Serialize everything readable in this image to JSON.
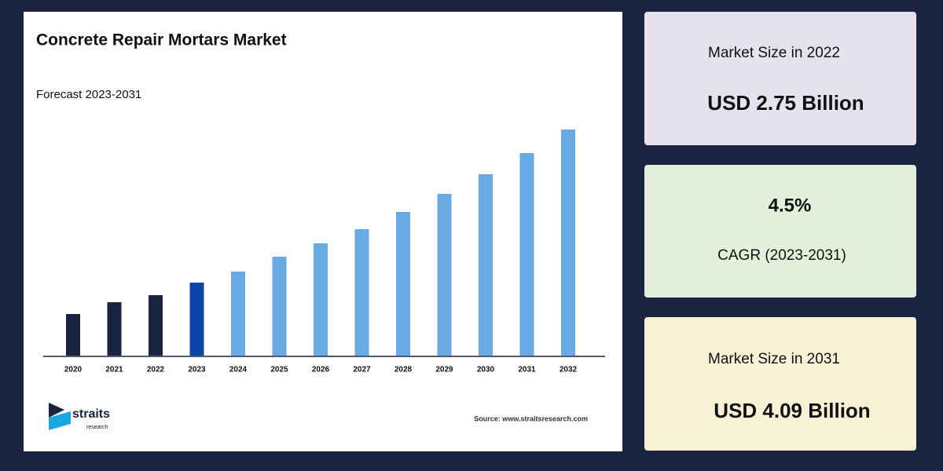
{
  "header": {
    "title": "Concrete Repair Mortars Market",
    "subtitle": "Forecast 2023-2031"
  },
  "chart_data": {
    "type": "bar",
    "categories": [
      "2020",
      "2021",
      "2022",
      "2023",
      "2024",
      "2025",
      "2026",
      "2027",
      "2028",
      "2029",
      "2030",
      "2031",
      "2032"
    ],
    "values": [
      53,
      68,
      77,
      93,
      107,
      126,
      143,
      161,
      183,
      206,
      231,
      258,
      288
    ],
    "colors": [
      "#1a2340",
      "#1a2340",
      "#1a2340",
      "#0a45a8",
      "#6aaae4",
      "#6aaae4",
      "#6aaae4",
      "#6aaae4",
      "#6aaae4",
      "#6aaae4",
      "#6aaae4",
      "#6aaae4",
      "#6aaae4"
    ],
    "ylim": [
      0,
      300
    ]
  },
  "cards": [
    {
      "label": "Market Size in 2022",
      "value": "USD 2.75 Billion"
    },
    {
      "value": "4.5%",
      "label": "CAGR (2023-2031)"
    },
    {
      "label": "Market Size in 2031",
      "value": "USD 4.09 Billion"
    }
  ],
  "footer": {
    "logo_name": "straits",
    "logo_sub": "research",
    "source": "Source: www.straitsresearch.com"
  }
}
